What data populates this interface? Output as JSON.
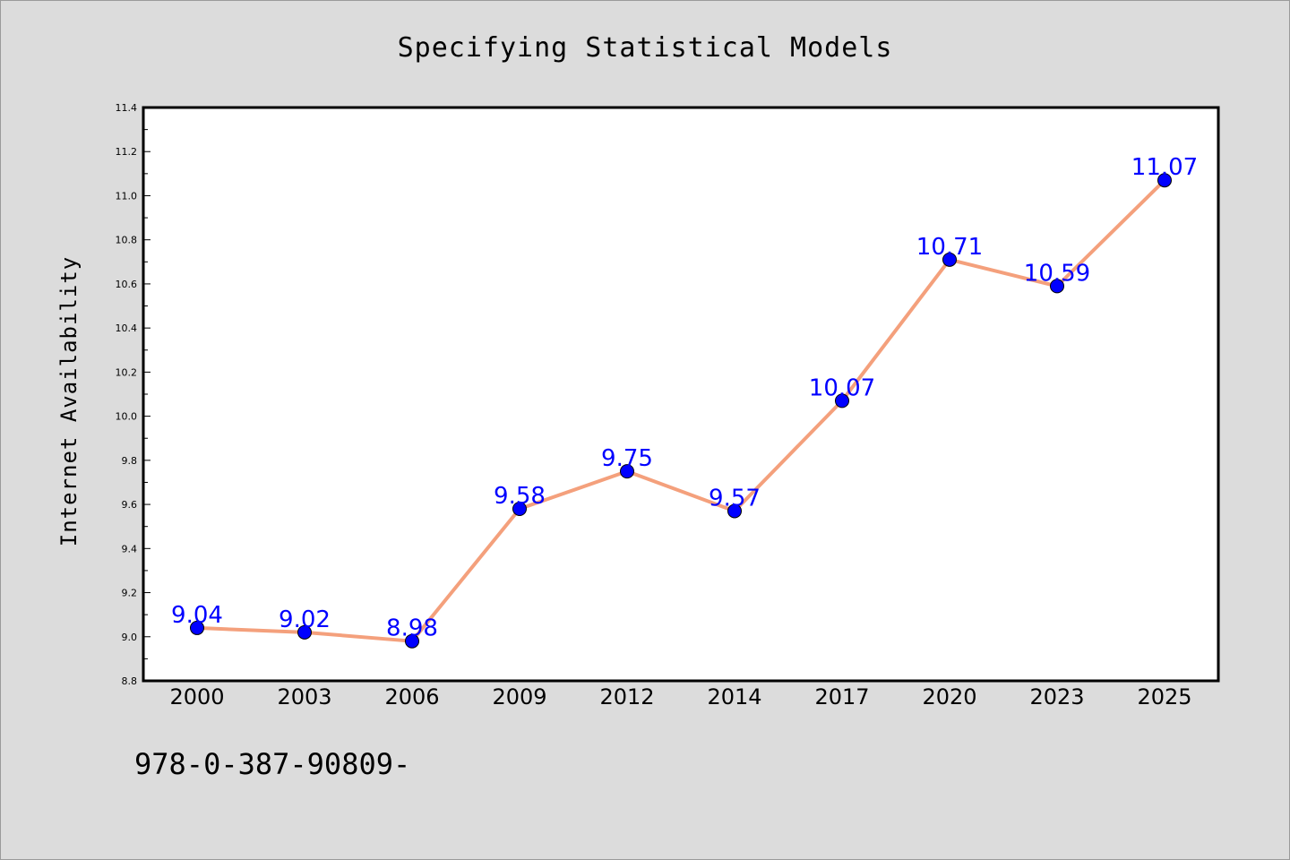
{
  "chart_data": {
    "type": "line",
    "title": "Specifying Statistical Models",
    "xlabel": "",
    "ylabel": "Internet Availability",
    "categories": [
      "2000",
      "2003",
      "2006",
      "2009",
      "2012",
      "2014",
      "2017",
      "2020",
      "2023",
      "2025"
    ],
    "series": [
      {
        "values": [
          9.04,
          9.02,
          8.98,
          9.58,
          9.75,
          9.57,
          10.07,
          10.71,
          10.59,
          11.07
        ]
      }
    ],
    "data_labels": [
      "9.04",
      "9.02",
      "8.98",
      "9.58",
      "9.75",
      "9.57",
      "10.07",
      "10.71",
      "10.59",
      "11.07"
    ],
    "ylim": [
      8.8,
      11.4
    ],
    "yticks": [
      "8.8",
      "9.0",
      "9.2",
      "9.4",
      "9.6",
      "9.8",
      "10.0",
      "10.2",
      "10.4",
      "10.6",
      "10.8",
      "11.0",
      "11.2",
      "11.4"
    ],
    "grid": false,
    "colors": {
      "line": "#f4a07c",
      "marker": "#0000ff",
      "data_label": "#0000ff",
      "background": "#dcdcdc",
      "plot_background": "#ffffff"
    }
  },
  "annotation": {
    "isbn": "978-0-387-90809-"
  }
}
